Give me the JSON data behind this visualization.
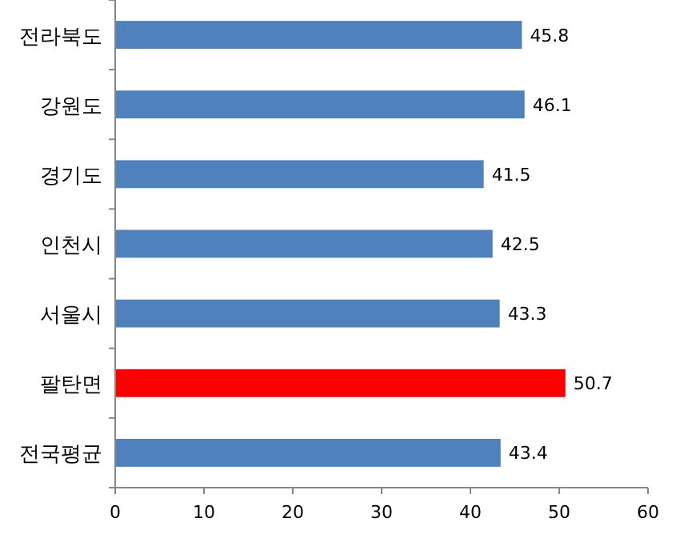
{
  "chart_data": {
    "type": "bar",
    "orientation": "horizontal",
    "categories": [
      "전라북도",
      "강원도",
      "경기도",
      "인천시",
      "서울시",
      "팔탄면",
      "전국평균"
    ],
    "values": [
      45.8,
      46.1,
      41.5,
      42.5,
      43.3,
      50.7,
      43.4
    ],
    "colors": [
      "#4f81bd",
      "#4f81bd",
      "#4f81bd",
      "#4f81bd",
      "#4f81bd",
      "#ff0000",
      "#4f81bd"
    ],
    "xlim": [
      0,
      60
    ],
    "xticks": [
      0,
      10,
      20,
      30,
      40,
      50,
      60
    ],
    "data_labels": true
  }
}
